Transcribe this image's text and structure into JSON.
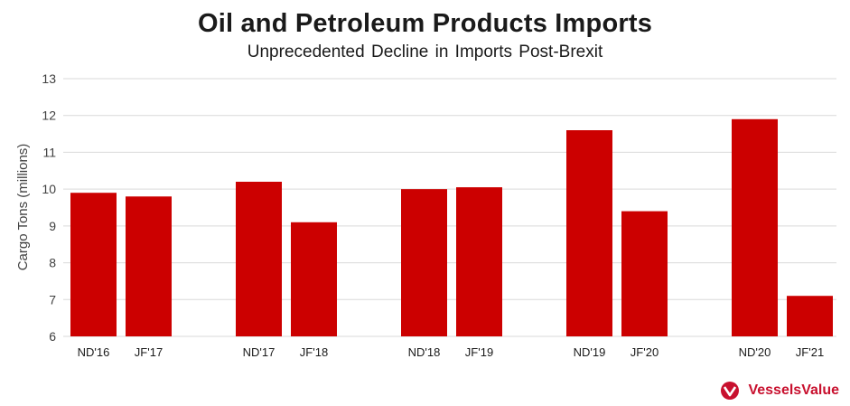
{
  "colors": {
    "bar": "#cc0000",
    "grid": "#d9d9d9",
    "brand": "#c8102e"
  },
  "brand": {
    "name": "VesselsValue",
    "icon": "vesselsvalue-logo-icon"
  },
  "chart_data": {
    "type": "bar",
    "title": "Oil and Petroleum Products Imports",
    "subtitle": "Unprecedented Decline in Imports Post-Brexit",
    "xlabel": "",
    "ylabel": "Cargo Tons (millions)",
    "ylim": [
      6,
      13
    ],
    "yticks": [
      "6",
      "7",
      "8",
      "9",
      "10",
      "11",
      "12",
      "13"
    ],
    "grid": true,
    "legend": "none",
    "categories": [
      "ND'16",
      "JF'17",
      "ND'17",
      "JF'18",
      "ND'18",
      "JF'19",
      "ND'19",
      "JF'20",
      "ND'20",
      "JF'21"
    ],
    "values": [
      9.9,
      9.8,
      10.2,
      9.1,
      10.0,
      10.05,
      11.6,
      9.4,
      11.9,
      7.1
    ]
  }
}
